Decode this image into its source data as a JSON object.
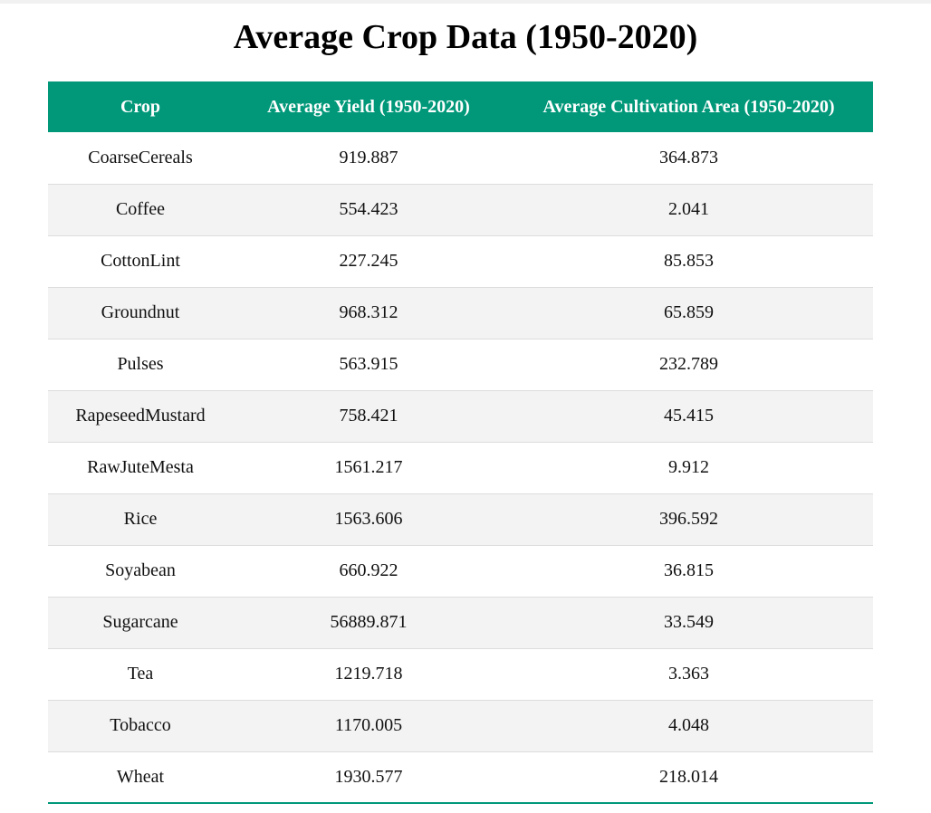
{
  "title": "Average Crop Data (1950-2020)",
  "table": {
    "headers": [
      "Crop",
      "Average Yield (1950-2020)",
      "Average Cultivation Area (1950-2020)"
    ],
    "rows": [
      [
        "CoarseCereals",
        "919.887",
        "364.873"
      ],
      [
        "Coffee",
        "554.423",
        "2.041"
      ],
      [
        "CottonLint",
        "227.245",
        "85.853"
      ],
      [
        "Groundnut",
        "968.312",
        "65.859"
      ],
      [
        "Pulses",
        "563.915",
        "232.789"
      ],
      [
        "RapeseedMustard",
        "758.421",
        "45.415"
      ],
      [
        "RawJuteMesta",
        "1561.217",
        "9.912"
      ],
      [
        "Rice",
        "1563.606",
        "396.592"
      ],
      [
        "Soyabean",
        "660.922",
        "36.815"
      ],
      [
        "Sugarcane",
        "56889.871",
        "33.549"
      ],
      [
        "Tea",
        "1219.718",
        "3.363"
      ],
      [
        "Tobacco",
        "1170.005",
        "4.048"
      ],
      [
        "Wheat",
        "1930.577",
        "218.014"
      ]
    ]
  },
  "colors": {
    "header_bg": "#009879",
    "header_text": "#ffffff",
    "stripe_bg": "#f3f3f3",
    "row_border": "#dddddd"
  }
}
